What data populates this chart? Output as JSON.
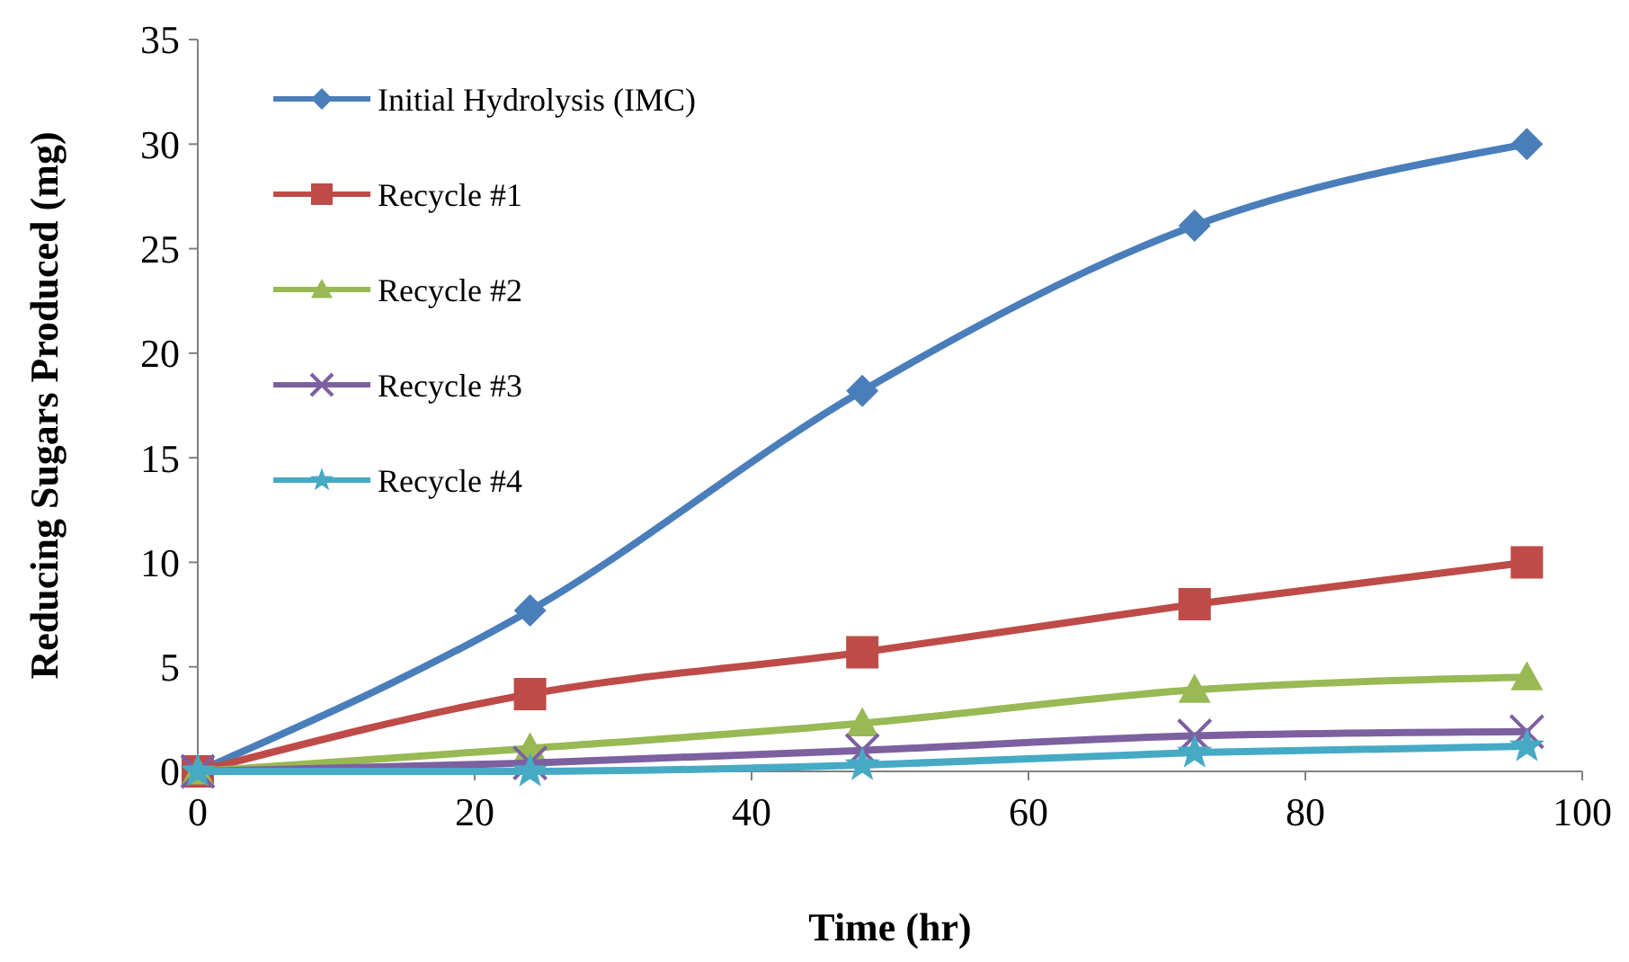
{
  "chart_data": {
    "type": "line",
    "xlabel": "Time (hr)",
    "ylabel": "Reducing Sugars Produced (mg)",
    "x": [
      0,
      24,
      48,
      72,
      96
    ],
    "xlim": [
      0,
      100
    ],
    "xticks": [
      0,
      20,
      40,
      60,
      80,
      100
    ],
    "ylim": [
      0,
      35
    ],
    "yticks": [
      0,
      5,
      10,
      15,
      20,
      25,
      30,
      35
    ],
    "legend": "top left",
    "grid": false,
    "line_style": "solid",
    "series": [
      {
        "name": "Initial Hydrolysis (IMC)",
        "color": "#4a7ebb",
        "marker": "diamond",
        "values": [
          0,
          7.7,
          18.2,
          26.1,
          30
        ]
      },
      {
        "name": "Recycle #1",
        "color": "#be4b48",
        "marker": "square",
        "values": [
          0,
          3.7,
          5.7,
          8.0,
          10.0
        ]
      },
      {
        "name": "Recycle #2",
        "color": "#98b954",
        "marker": "triangle",
        "values": [
          0,
          1.1,
          2.3,
          3.9,
          4.5
        ]
      },
      {
        "name": "Recycle #3",
        "color": "#7d60a0",
        "marker": "cross",
        "values": [
          0,
          0.4,
          1.0,
          1.7,
          1.9
        ]
      },
      {
        "name": "Recycle #4",
        "color": "#46aac5",
        "marker": "star",
        "values": [
          0,
          0.0,
          0.3,
          0.9,
          1.2
        ]
      }
    ]
  }
}
